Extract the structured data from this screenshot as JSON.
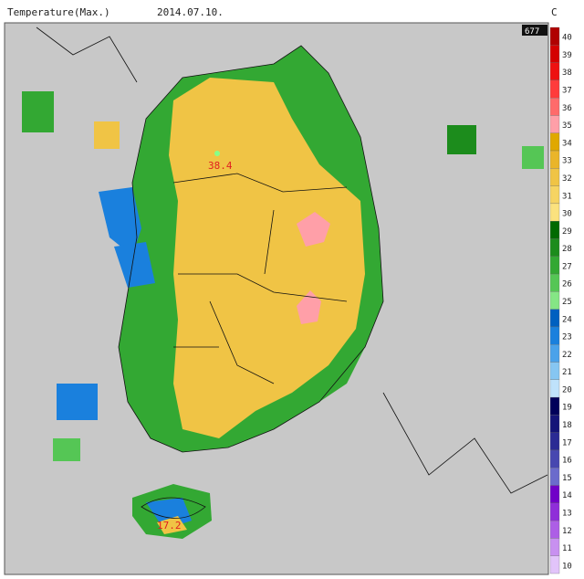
{
  "header": {
    "title": "Temperature(Max.)",
    "date": "2014.07.10.",
    "unit": "C",
    "badge": "677"
  },
  "legend": {
    "levels": [
      40,
      39,
      38,
      37,
      36,
      35,
      34,
      33,
      32,
      31,
      30,
      29,
      28,
      27,
      26,
      25,
      24,
      23,
      22,
      21,
      20,
      19,
      18,
      17,
      16,
      15,
      14,
      13,
      12,
      11,
      10
    ],
    "colors": [
      "#b00000",
      "#d40000",
      "#ee1111",
      "#ff3b3b",
      "#ff6b6b",
      "#ff9fa8",
      "#e0a800",
      "#eab52a",
      "#f0c445",
      "#f6d462",
      "#fbe27e",
      "#006a00",
      "#1c8c1c",
      "#33a833",
      "#55c655",
      "#85e685",
      "#0060c0",
      "#1a80dd",
      "#4aa2ea",
      "#86c6f2",
      "#bfe2fb",
      "#00005a",
      "#141478",
      "#2b2b94",
      "#4747b0",
      "#6b6bcc",
      "#7000c8",
      "#8f2ed9",
      "#ad5ee6",
      "#c890f0",
      "#e2c4fa"
    ]
  },
  "annotations": [
    {
      "value": 38.4
    },
    {
      "value": 17.2
    }
  ]
}
